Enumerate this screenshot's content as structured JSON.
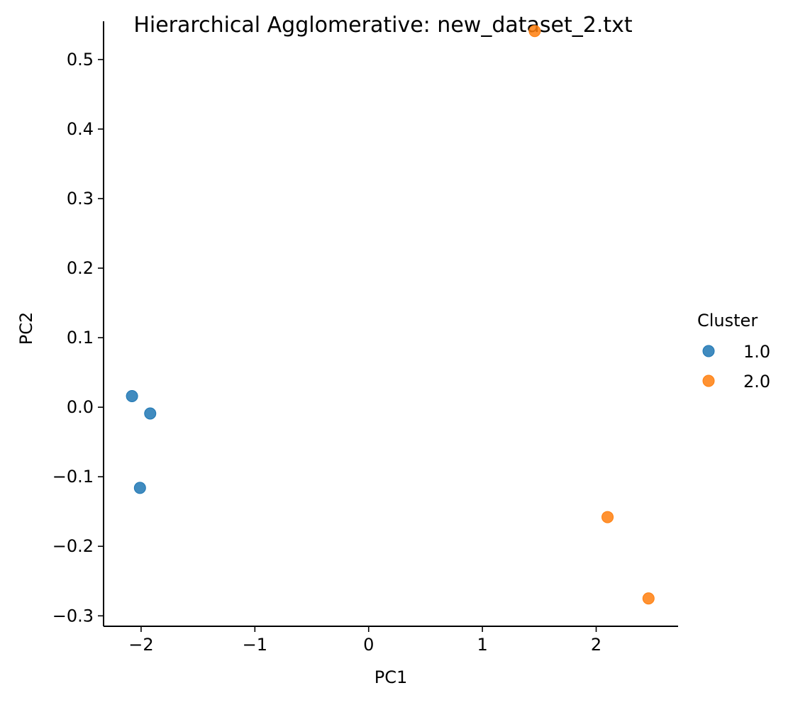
{
  "chart_data": {
    "type": "scatter",
    "title": "Hierarchical Agglomerative: new_dataset_2.txt",
    "xlabel": "PC1",
    "ylabel": "PC2",
    "xlim": [
      -2.33,
      2.72
    ],
    "ylim": [
      -0.315,
      0.555
    ],
    "x_ticks": [
      -2,
      -1,
      0,
      1,
      2
    ],
    "x_tick_labels": [
      "−2",
      "−1",
      "0",
      "1",
      "2"
    ],
    "y_ticks": [
      -0.3,
      -0.2,
      -0.1,
      0.0,
      0.1,
      0.2,
      0.3,
      0.4,
      0.5
    ],
    "y_tick_labels": [
      "−0.3",
      "−0.2",
      "−0.1",
      "0.0",
      "0.1",
      "0.2",
      "0.3",
      "0.4",
      "0.5"
    ],
    "grid": false,
    "legend": {
      "title": "Cluster",
      "placement": "right"
    },
    "series": [
      {
        "name": "1.0",
        "color": "#1f77b4",
        "points": [
          {
            "x": -2.08,
            "y": 0.016
          },
          {
            "x": -1.92,
            "y": -0.009
          },
          {
            "x": -2.01,
            "y": -0.116
          }
        ]
      },
      {
        "name": "2.0",
        "color": "#ff7f0e",
        "points": [
          {
            "x": 1.46,
            "y": 0.541
          },
          {
            "x": 2.1,
            "y": -0.158
          },
          {
            "x": 2.46,
            "y": -0.275
          }
        ]
      }
    ]
  }
}
